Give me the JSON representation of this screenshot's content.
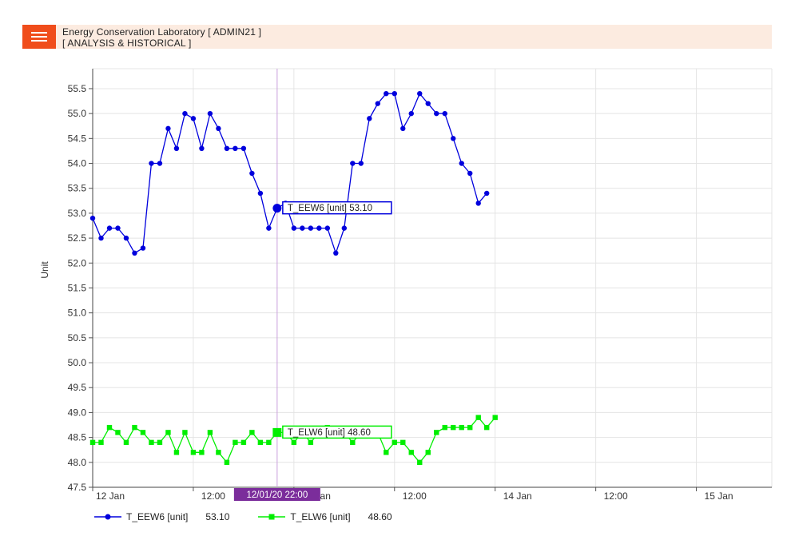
{
  "header": {
    "title": "Energy Conservation Laboratory [ ADMIN21 ]",
    "subtitle": "[ ANALYSIS & HISTORICAL ]",
    "menu_icon": "hamburger-menu-icon"
  },
  "colors": {
    "accent": "#f04d1b",
    "header_bg": "#fcebe0",
    "series1": "#0000dd",
    "series2": "#00ee00",
    "cursor": "#c9a0dc",
    "cursor_label_bg": "#7b2d9b"
  },
  "chart_data": {
    "type": "line",
    "ylabel": "Unit",
    "xlabel": "",
    "ylim": [
      47.5,
      55.9
    ],
    "yticks": [
      "47.5",
      "48.0",
      "48.5",
      "49.0",
      "49.5",
      "50.0",
      "50.5",
      "51.0",
      "51.5",
      "52.0",
      "52.5",
      "53.0",
      "53.5",
      "54.0",
      "54.5",
      "55.0",
      "55.5"
    ],
    "x_tick_labels": [
      "12 Jan",
      "12:00",
      "13 Jan",
      "12:00",
      "14 Jan",
      "12:00",
      "15 Jan"
    ],
    "x_unit": "hour index from 12 Jan 00:00",
    "xlim": [
      0,
      81
    ],
    "grid": true,
    "legend_position": "bottom-left",
    "cursor": {
      "x": 22,
      "label": "12/01/20 22:00"
    },
    "series": [
      {
        "name": "T_EEW6 [unit]",
        "current_value": "53.10",
        "marker": "circle",
        "x": [
          0,
          1,
          2,
          3,
          4,
          5,
          6,
          7,
          8,
          9,
          10,
          11,
          12,
          13,
          14,
          15,
          16,
          17,
          18,
          19,
          20,
          21,
          22,
          23,
          24,
          25,
          26,
          27,
          28,
          29,
          30,
          31,
          32,
          33,
          34,
          35,
          36,
          37,
          38,
          39,
          40,
          41,
          42,
          43,
          44,
          45,
          46,
          47,
          48
        ],
        "values": [
          52.9,
          52.5,
          52.7,
          52.7,
          52.5,
          52.2,
          52.3,
          54.0,
          54.0,
          54.7,
          54.3,
          55.0,
          54.9,
          54.3,
          55.0,
          54.7,
          54.3,
          54.3,
          54.3,
          53.8,
          53.4,
          52.7,
          53.1,
          53.2,
          52.7,
          52.7,
          52.7,
          52.7,
          52.7,
          52.2,
          52.7,
          54.0,
          54.0,
          54.9,
          55.2,
          55.4,
          55.4,
          54.7,
          55.0,
          55.4,
          55.2,
          55.0,
          55.0,
          54.5,
          54.0,
          53.8,
          53.2,
          53.4,
          null
        ]
      },
      {
        "name": "T_ELW6 [unit]",
        "current_value": "48.60",
        "marker": "square",
        "x": [
          0,
          1,
          2,
          3,
          4,
          5,
          6,
          7,
          8,
          9,
          10,
          11,
          12,
          13,
          14,
          15,
          16,
          17,
          18,
          19,
          20,
          21,
          22,
          23,
          24,
          25,
          26,
          27,
          28,
          29,
          30,
          31,
          32,
          33,
          34,
          35,
          36,
          37,
          38,
          39,
          40,
          41,
          42,
          43,
          44,
          45,
          46,
          47,
          48
        ],
        "values": [
          48.4,
          48.4,
          48.7,
          48.6,
          48.4,
          48.7,
          48.6,
          48.4,
          48.4,
          48.6,
          48.2,
          48.6,
          48.2,
          48.2,
          48.6,
          48.2,
          48.0,
          48.4,
          48.4,
          48.6,
          48.4,
          48.4,
          48.6,
          48.6,
          48.4,
          48.6,
          48.4,
          48.6,
          48.7,
          48.6,
          48.6,
          48.4,
          48.6,
          48.6,
          48.6,
          48.2,
          48.4,
          48.4,
          48.2,
          48.0,
          48.2,
          48.6,
          48.7,
          48.7,
          48.7,
          48.7,
          48.9,
          48.7,
          48.9
        ]
      }
    ],
    "tooltips": [
      {
        "series": 0,
        "text": "T_EEW6 [unit] 53.10"
      },
      {
        "series": 1,
        "text": "T_ELW6 [unit] 48.60"
      }
    ]
  }
}
